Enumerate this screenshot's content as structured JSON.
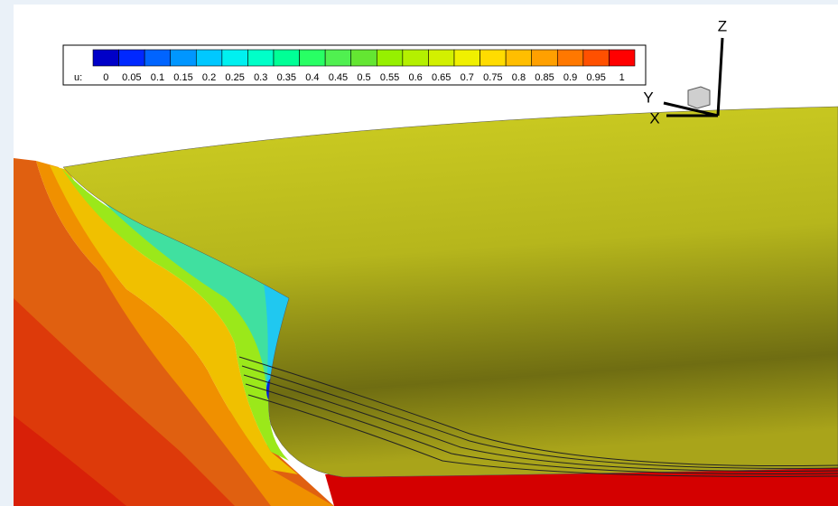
{
  "legend": {
    "variable": "u:",
    "levels": [
      {
        "label": "0",
        "color": "#0000c8"
      },
      {
        "label": "0.05",
        "color": "#0028ff"
      },
      {
        "label": "0.1",
        "color": "#0064ff"
      },
      {
        "label": "0.15",
        "color": "#0096ff"
      },
      {
        "label": "0.2",
        "color": "#00c8ff"
      },
      {
        "label": "0.25",
        "color": "#00f0f0"
      },
      {
        "label": "0.3",
        "color": "#00ffc8"
      },
      {
        "label": "0.35",
        "color": "#00ff96"
      },
      {
        "label": "0.4",
        "color": "#28ff64"
      },
      {
        "label": "0.45",
        "color": "#50f050"
      },
      {
        "label": "0.5",
        "color": "#64e632"
      },
      {
        "label": "0.55",
        "color": "#96f000"
      },
      {
        "label": "0.6",
        "color": "#b4f000"
      },
      {
        "label": "0.65",
        "color": "#d2f000"
      },
      {
        "label": "0.7",
        "color": "#f0f000"
      },
      {
        "label": "0.75",
        "color": "#ffdc00"
      },
      {
        "label": "0.8",
        "color": "#ffbe00"
      },
      {
        "label": "0.85",
        "color": "#ffa000"
      },
      {
        "label": "0.9",
        "color": "#ff7800"
      },
      {
        "label": "0.95",
        "color": "#ff5000"
      },
      {
        "label": "1",
        "color": "#ff0000"
      }
    ]
  },
  "triad": {
    "z": "Z",
    "y": "Y",
    "x": "X"
  }
}
